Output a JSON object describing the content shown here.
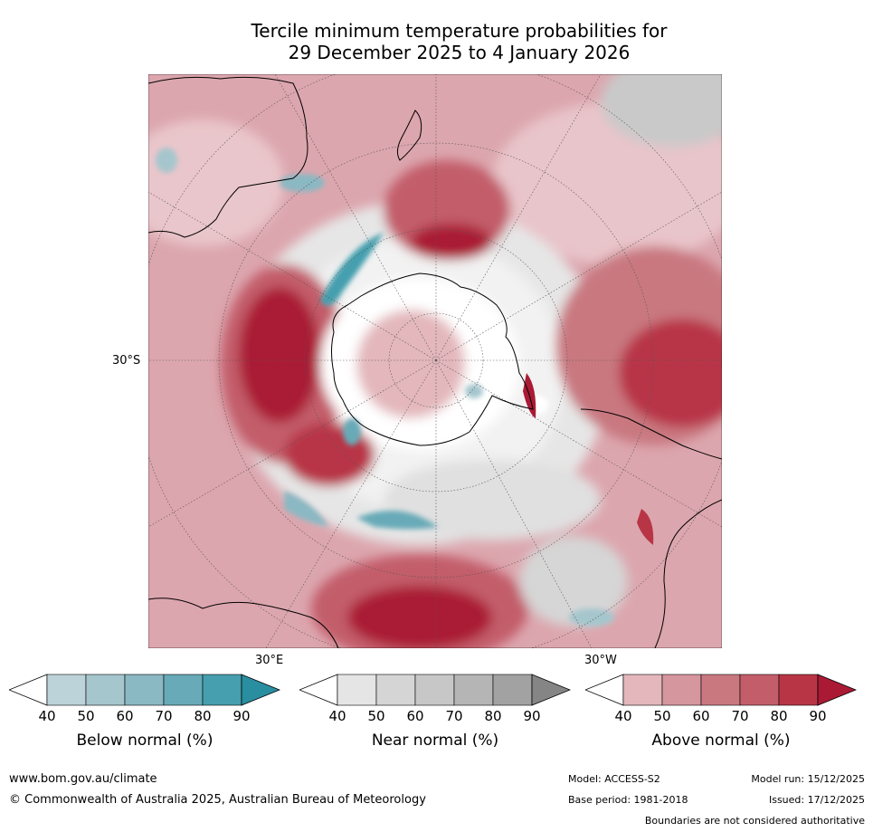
{
  "title": {
    "line1": "Tercile minimum temperature probabilities for",
    "line2": "29 December 2025 to 4 January 2026"
  },
  "map": {
    "lat_label": "30°S",
    "lon_labels": [
      "30°E",
      "30°W"
    ]
  },
  "colorbars": [
    {
      "name": "below",
      "title": "Below normal (%)",
      "ticks": [
        "40",
        "50",
        "60",
        "70",
        "80",
        "90"
      ],
      "colors": [
        "#ffffff",
        "#bdd3da",
        "#a5c6cd",
        "#8ab8c3",
        "#68aab7",
        "#459fae",
        "#2a8ea1"
      ]
    },
    {
      "name": "near",
      "title": "Near normal (%)",
      "ticks": [
        "40",
        "50",
        "60",
        "70",
        "80",
        "90"
      ],
      "colors": [
        "#ffffff",
        "#e5e5e5",
        "#d5d5d5",
        "#c7c7c7",
        "#b5b5b5",
        "#a2a2a2",
        "#858585"
      ]
    },
    {
      "name": "above",
      "title": "Above normal (%)",
      "ticks": [
        "40",
        "50",
        "60",
        "70",
        "80",
        "90"
      ],
      "colors": [
        "#ffffff",
        "#e3b7bc",
        "#d5969e",
        "#c97880",
        "#c35d6a",
        "#b83546",
        "#aa1a35"
      ]
    }
  ],
  "footer": {
    "website": "www.bom.gov.au/climate",
    "copyright": "© Commonwealth of Australia 2025, Australian Bureau of Meteorology",
    "model": "Model: ACCESS-S2",
    "base_period": "Base period: 1981-2018",
    "model_run": "Model run: 15/12/2025",
    "issued": "Issued: 17/12/2025",
    "disclaimer": "Boundaries are not considered authoritative"
  }
}
